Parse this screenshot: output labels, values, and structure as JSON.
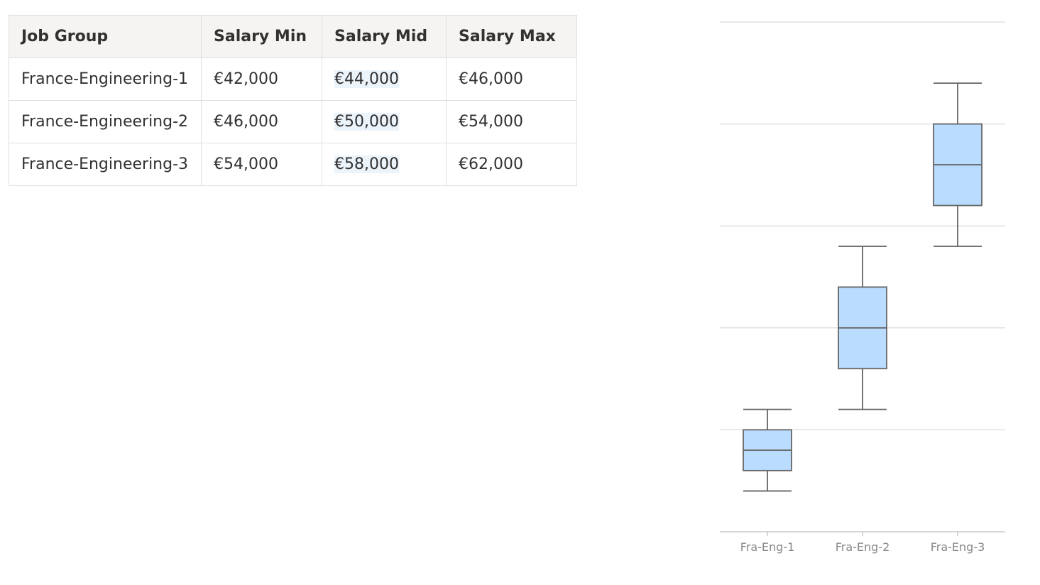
{
  "table": {
    "headers": [
      "Job Group",
      "Salary Min",
      "Salary Mid",
      "Salary Max"
    ],
    "rows": [
      {
        "group": "France-Engineering-1",
        "min": "€42,000",
        "mid": "€44,000",
        "max": "€46,000"
      },
      {
        "group": "France-Engineering-2",
        "min": "€46,000",
        "mid": "€50,000",
        "max": "€54,000"
      },
      {
        "group": "France-Engineering-3",
        "min": "€54,000",
        "mid": "€58,000",
        "max": "€62,000"
      }
    ]
  },
  "chart_data": {
    "type": "box",
    "categories": [
      "Fra-Eng-1",
      "Fra-Eng-2",
      "Fra-Eng-3"
    ],
    "boxes": [
      {
        "whisker_low": 42000,
        "q1": 43000,
        "median": 44000,
        "q3": 45000,
        "whisker_high": 46000
      },
      {
        "whisker_low": 46000,
        "q1": 48000,
        "median": 50000,
        "q3": 52000,
        "whisker_high": 54000
      },
      {
        "whisker_low": 54000,
        "q1": 56000,
        "median": 58000,
        "q3": 60000,
        "whisker_high": 62000
      }
    ],
    "ylim": [
      40000,
      65000
    ],
    "gridlines": [
      40000,
      45000,
      50000,
      55000,
      60000,
      65000
    ],
    "y_tick_labels_shown": false,
    "title": "",
    "xlabel": "",
    "ylabel": "",
    "colors": {
      "box_fill": "#b9dcff",
      "box_stroke": "#666666",
      "grid": "#e1e1e1",
      "axis": "#c8c8c8",
      "tick_label": "#8a8886"
    }
  }
}
